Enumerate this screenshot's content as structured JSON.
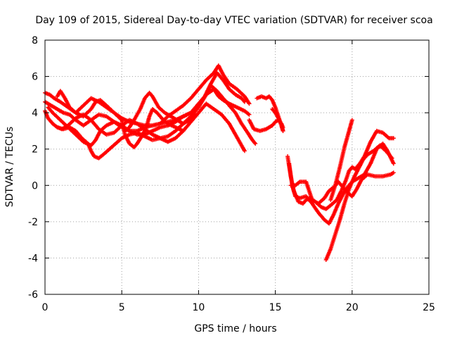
{
  "chart_data": {
    "type": "scatter",
    "title": "Day 109 of 2015, Sidereal Day-to-day VTEC variation (SDTVAR) for receiver scoa",
    "xlabel": "GPS time / hours",
    "ylabel": "SDTVAR / TECUs",
    "xlim": [
      0,
      25
    ],
    "ylim": [
      -6,
      8
    ],
    "xticks": [
      "0",
      "5",
      "10",
      "15",
      "20",
      "25"
    ],
    "yticks": [
      "-6",
      "-4",
      "-2",
      "0",
      "2",
      "4",
      "6",
      "8"
    ],
    "grid": true,
    "legend": "none",
    "marker": "plus",
    "color": "#ff0000",
    "series": [
      {
        "x": [
          0.0,
          0.3,
          0.6,
          1.0,
          1.5,
          2.0,
          2.5,
          3.0,
          3.3,
          3.6,
          4.0,
          4.5,
          5.0,
          5.5,
          6.0,
          6.5,
          7.0,
          7.5,
          8.0,
          8.5,
          9.0,
          9.5,
          10.0,
          10.5,
          11.0,
          11.3,
          11.6,
          12.0,
          12.5,
          13.0,
          13.3
        ],
        "y": [
          5.1,
          5.0,
          4.8,
          4.6,
          4.3,
          4.0,
          3.8,
          4.2,
          4.6,
          4.7,
          4.4,
          4.0,
          3.7,
          3.5,
          3.4,
          3.3,
          3.3,
          3.4,
          3.8,
          4.1,
          4.4,
          4.8,
          5.3,
          5.8,
          6.2,
          6.6,
          6.1,
          5.6,
          5.3,
          4.9,
          4.5
        ]
      },
      {
        "x": [
          0.0,
          0.4,
          0.8,
          1.2,
          1.6,
          2.0,
          2.5,
          3.0,
          3.5,
          4.0,
          4.5,
          5.0,
          5.5,
          6.0,
          6.5,
          7.0,
          7.5,
          8.0,
          8.5,
          9.0,
          9.5,
          10.0,
          10.4,
          10.8,
          11.2,
          11.6,
          12.0,
          12.4,
          12.8,
          13.0
        ],
        "y": [
          4.6,
          4.4,
          4.2,
          4.0,
          3.9,
          3.6,
          3.3,
          3.6,
          3.9,
          3.8,
          3.5,
          3.2,
          3.0,
          3.0,
          3.2,
          3.3,
          3.4,
          3.5,
          3.6,
          3.8,
          4.0,
          4.3,
          4.9,
          5.6,
          6.2,
          5.8,
          5.3,
          5.0,
          4.8,
          4.6
        ]
      },
      {
        "x": [
          0.0,
          0.2,
          0.5,
          0.8,
          1.1,
          1.5,
          2.0,
          2.5,
          3.0,
          3.5,
          4.0,
          4.5,
          5.0,
          5.5,
          6.0,
          6.5,
          7.0,
          7.5,
          8.0,
          8.5,
          9.0,
          9.5,
          10.0,
          10.5,
          10.8,
          11.2,
          11.6,
          12.0,
          12.4,
          12.8,
          13.2,
          13.5,
          13.7
        ],
        "y": [
          4.1,
          3.7,
          3.4,
          3.2,
          3.1,
          3.3,
          3.7,
          3.9,
          3.6,
          3.1,
          2.8,
          2.9,
          3.3,
          3.6,
          3.4,
          3.1,
          2.8,
          2.6,
          2.7,
          3.0,
          3.4,
          3.8,
          4.3,
          5.0,
          5.5,
          5.2,
          4.8,
          4.4,
          4.0,
          3.4,
          2.9,
          2.5,
          2.3
        ]
      },
      {
        "x": [
          0.2,
          0.5,
          1.0,
          1.5,
          2.0,
          2.5,
          3.0,
          3.3,
          3.6,
          4.0,
          4.5,
          5.0,
          5.5,
          6.0,
          6.5,
          7.0,
          7.5,
          8.0,
          8.5,
          9.0,
          9.5,
          10.0,
          10.5,
          11.0,
          11.3,
          11.6,
          12.0,
          12.5,
          13.0,
          13.3
        ],
        "y": [
          4.3,
          4.0,
          3.6,
          3.2,
          2.8,
          2.4,
          2.2,
          2.5,
          3.0,
          3.3,
          3.5,
          3.3,
          3.0,
          2.8,
          2.8,
          3.0,
          3.2,
          3.3,
          3.5,
          3.8,
          4.0,
          4.5,
          5.0,
          5.3,
          4.9,
          4.7,
          4.5,
          4.3,
          4.1,
          3.9
        ]
      },
      {
        "x": [
          0.8,
          1.2,
          1.6,
          2.0,
          2.4,
          2.8,
          3.0,
          3.2,
          3.5,
          3.8,
          4.2,
          4.6,
          5.0,
          5.5,
          6.0,
          6.5,
          7.0,
          7.5,
          8.0,
          8.5,
          9.0,
          9.5,
          10.0,
          10.5,
          11.0,
          11.5,
          12.0,
          12.4,
          12.8,
          13.0
        ],
        "y": [
          3.2,
          3.1,
          3.2,
          3.0,
          2.6,
          2.3,
          1.9,
          1.6,
          1.5,
          1.7,
          2.0,
          2.3,
          2.6,
          2.8,
          2.9,
          2.7,
          2.5,
          2.6,
          2.4,
          2.6,
          3.0,
          3.5,
          4.0,
          4.5,
          4.2,
          3.9,
          3.4,
          2.8,
          2.2,
          1.9
        ]
      },
      {
        "x": [
          0.8,
          1.0,
          1.3,
          1.6,
          2.0,
          2.5,
          3.0,
          3.5,
          4.0,
          4.5,
          5.0,
          5.2,
          5.5,
          5.8,
          6.0,
          6.3,
          6.6,
          6.8,
          7.0,
          7.3,
          7.6,
          8.0,
          8.5,
          9.0
        ],
        "y": [
          4.9,
          5.2,
          4.8,
          4.3,
          4.0,
          4.4,
          4.8,
          4.6,
          4.3,
          4.0,
          3.6,
          2.8,
          2.3,
          2.1,
          2.3,
          2.7,
          3.2,
          3.8,
          4.2,
          4.0,
          3.7,
          3.4,
          3.2,
          3.0
        ]
      },
      {
        "x": [
          5.2,
          5.5,
          5.8,
          6.2,
          6.5,
          6.8,
          7.0,
          7.4,
          7.8,
          8.2,
          8.6,
          9.0,
          9.4,
          9.8
        ],
        "y": [
          3.0,
          3.2,
          3.6,
          4.2,
          4.8,
          5.1,
          4.9,
          4.3,
          4.0,
          3.8,
          3.6,
          3.4,
          3.6,
          3.9
        ]
      },
      {
        "x": [
          13.3,
          13.6,
          14.0,
          14.4,
          14.8,
          15.0,
          15.2,
          15.4,
          15.5
        ],
        "y": [
          3.6,
          3.1,
          3.0,
          3.1,
          3.3,
          3.5,
          3.6,
          3.4,
          3.2
        ]
      },
      {
        "x": [
          13.8,
          14.1,
          14.4,
          14.6,
          14.8,
          15.0,
          15.2,
          15.4,
          15.5
        ],
        "y": [
          4.8,
          4.9,
          4.8,
          4.9,
          4.7,
          4.3,
          3.8,
          3.3,
          3.0
        ]
      },
      {
        "x": [
          14.8,
          15.0,
          15.2,
          15.4,
          15.5
        ],
        "y": [
          4.2,
          4.0,
          3.7,
          3.3,
          3.0
        ]
      },
      {
        "x": [
          15.8,
          16.0,
          16.2,
          16.5,
          16.8,
          17.0,
          17.3,
          17.6,
          18.0,
          18.3,
          18.6,
          19.0,
          19.3,
          19.6,
          19.8,
          20.0,
          20.2,
          20.5,
          20.8,
          21.2,
          21.6,
          22.0,
          22.4,
          22.7
        ],
        "y": [
          1.6,
          0.5,
          -0.3,
          -0.9,
          -1.0,
          -0.8,
          -0.7,
          -0.9,
          -1.2,
          -1.3,
          -1.1,
          -0.8,
          -0.3,
          0.3,
          0.8,
          1.0,
          0.9,
          1.2,
          1.6,
          2.4,
          3.0,
          2.9,
          2.6,
          2.6
        ]
      },
      {
        "x": [
          15.9,
          16.1,
          16.3,
          16.6,
          17.0,
          17.4,
          17.8,
          18.2,
          18.5,
          18.8,
          19.1,
          19.4,
          19.7,
          20.0,
          20.4,
          20.8,
          21.2,
          21.6,
          22.0,
          22.3,
          22.7
        ],
        "y": [
          1.2,
          0.0,
          -0.6,
          -0.7,
          -0.6,
          -1.0,
          -1.5,
          -1.9,
          -2.1,
          -1.6,
          -1.0,
          -0.5,
          -0.1,
          0.2,
          0.4,
          0.6,
          1.2,
          2.0,
          2.3,
          1.9,
          1.2
        ]
      },
      {
        "x": [
          16.0,
          16.3,
          16.6,
          17.0,
          17.4,
          17.8,
          18.2,
          18.5,
          18.8,
          19.1,
          19.4,
          19.7,
          20.0,
          20.3,
          20.6,
          21.0,
          21.5,
          22.0,
          22.5,
          22.7
        ],
        "y": [
          0.0,
          0.0,
          0.2,
          0.2,
          -0.8,
          -1.0,
          -0.7,
          -0.3,
          -0.1,
          0.2,
          -0.1,
          -0.4,
          -0.6,
          -0.2,
          0.3,
          0.6,
          0.5,
          0.5,
          0.6,
          0.7
        ]
      },
      {
        "x": [
          18.3,
          18.6,
          18.9,
          19.2,
          19.5,
          19.8,
          20.1,
          20.4,
          20.7,
          21.0,
          21.4,
          21.8,
          22.2,
          22.6
        ],
        "y": [
          -4.1,
          -3.5,
          -2.7,
          -1.9,
          -1.0,
          -0.2,
          0.4,
          0.9,
          1.4,
          1.7,
          1.9,
          2.2,
          1.9,
          1.5
        ]
      },
      {
        "x": [
          18.6,
          18.9,
          19.2,
          19.5,
          19.8,
          20.0
        ],
        "y": [
          -0.8,
          0.0,
          1.0,
          2.1,
          3.0,
          3.6
        ]
      }
    ]
  }
}
